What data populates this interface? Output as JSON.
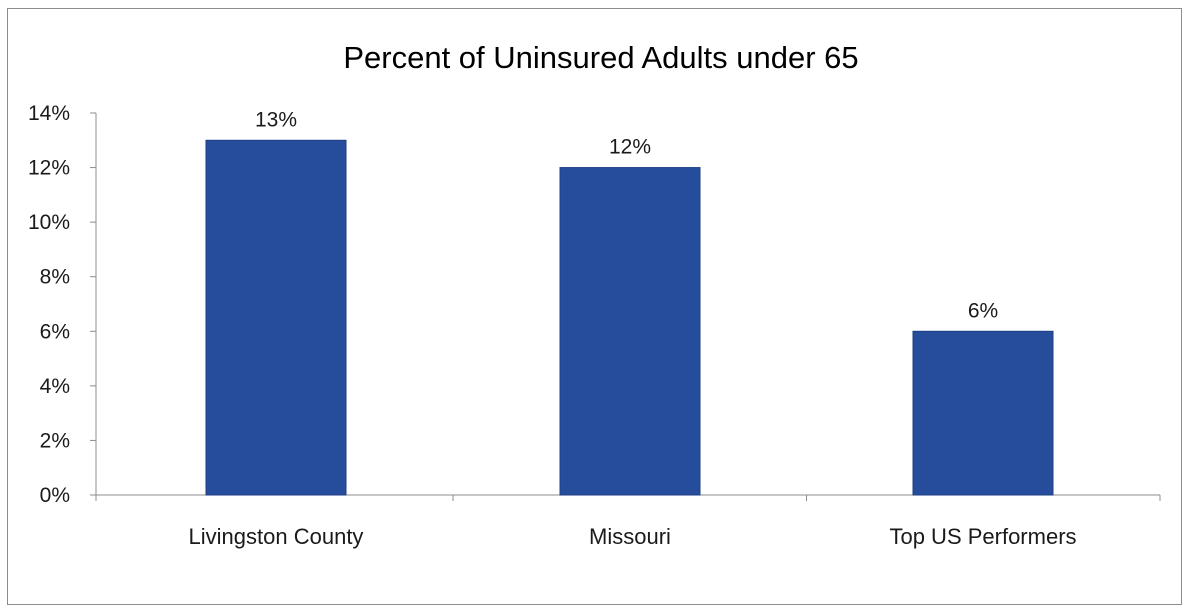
{
  "chart_data": {
    "type": "bar",
    "title": "Percent of Uninsured Adults under 65",
    "xlabel": "",
    "ylabel": "",
    "categories": [
      "Livingston County",
      "Missouri",
      "Top US Performers"
    ],
    "values": [
      13,
      12,
      6
    ],
    "data_labels": [
      "13%",
      "12%",
      "6%"
    ],
    "yticks": [
      0,
      2,
      4,
      6,
      8,
      10,
      12,
      14
    ],
    "ytick_labels": [
      "0%",
      "2%",
      "4%",
      "6%",
      "8%",
      "10%",
      "12%",
      "14%"
    ],
    "ylim": [
      0,
      14
    ],
    "grid": false,
    "legend": "none",
    "bar_color": "#264d9b",
    "bar_edge_color": "#1e3f86"
  }
}
